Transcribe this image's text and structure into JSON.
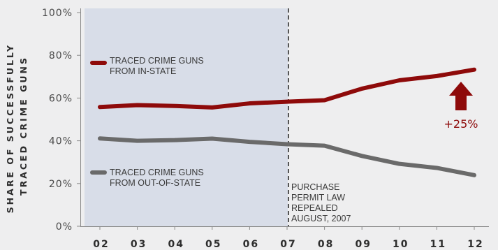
{
  "chart_data": {
    "type": "line",
    "x": [
      "02",
      "03",
      "04",
      "05",
      "06",
      "07",
      "08",
      "09",
      "10",
      "11",
      "12"
    ],
    "ylabel_lines": [
      "SHARE OF SUCCESSFULLY",
      "TRACED CRIME GUNS"
    ],
    "ylim": [
      0,
      100
    ],
    "yticks": [
      0,
      20,
      40,
      60,
      80,
      100
    ],
    "ytick_labels": [
      "0%",
      "20%",
      "40%",
      "60%",
      "80%",
      "100%"
    ],
    "grid": false,
    "series": [
      {
        "name_lines": [
          "TRACED CRIME GUNS",
          "FROM IN-STATE"
        ],
        "color": "#8e0a0a",
        "values": [
          55.8,
          56.7,
          56.3,
          55.6,
          57.5,
          58.3,
          59.0,
          64.4,
          68.3,
          70.3,
          73.3
        ]
      },
      {
        "name_lines": [
          "TRACED CRIME GUNS",
          "FROM OUT-OF-STATE"
        ],
        "color": "#6a6a6a",
        "values": [
          41.1,
          40.0,
          40.3,
          41.0,
          39.5,
          38.4,
          37.7,
          32.9,
          29.2,
          27.3,
          23.9
        ]
      }
    ],
    "shaded_region": {
      "x_start": "02",
      "x_end": "07",
      "color": "#d8dde8"
    },
    "event": {
      "x": "07",
      "label_lines": [
        "PURCHASE",
        "PERMIT LAW",
        "REPEALED",
        "AUGUST, 2007"
      ]
    },
    "change_annotation": {
      "text": "+25%",
      "color": "#8e0a0a",
      "icon": "up-arrow-icon"
    }
  }
}
